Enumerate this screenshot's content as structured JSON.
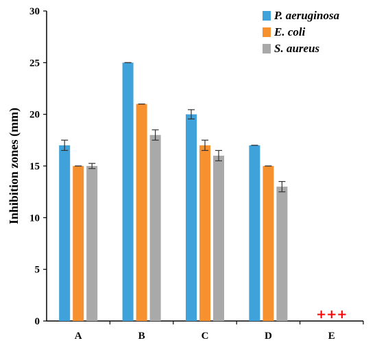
{
  "chart_data": {
    "type": "bar",
    "title": "",
    "xlabel": "",
    "ylabel": "Inhibition zones (mm)",
    "ylim": [
      0,
      30
    ],
    "yticks": [
      0,
      5,
      10,
      15,
      20,
      25,
      30
    ],
    "categories": [
      "A",
      "B",
      "C",
      "D",
      "E"
    ],
    "series": [
      {
        "name": "P. aeruginosa",
        "color": "#3fa2db",
        "values": [
          17,
          25,
          20,
          17,
          null
        ],
        "errors": [
          0.5,
          0,
          0.45,
          0,
          null
        ]
      },
      {
        "name": "E. coli",
        "color": "#f7912f",
        "values": [
          15,
          21,
          17,
          15,
          null
        ],
        "errors": [
          0,
          0,
          0.5,
          0,
          null
        ]
      },
      {
        "name": "S. aureus",
        "color": "#a9a9a9",
        "values": [
          15,
          18,
          16,
          13,
          null
        ],
        "errors": [
          0.25,
          0.5,
          0.5,
          0.5,
          null
        ]
      }
    ],
    "legend_position": "top-right",
    "grid": false,
    "annotations": [
      {
        "category": "E",
        "text": "+++",
        "color": "#ff0000"
      }
    ]
  }
}
